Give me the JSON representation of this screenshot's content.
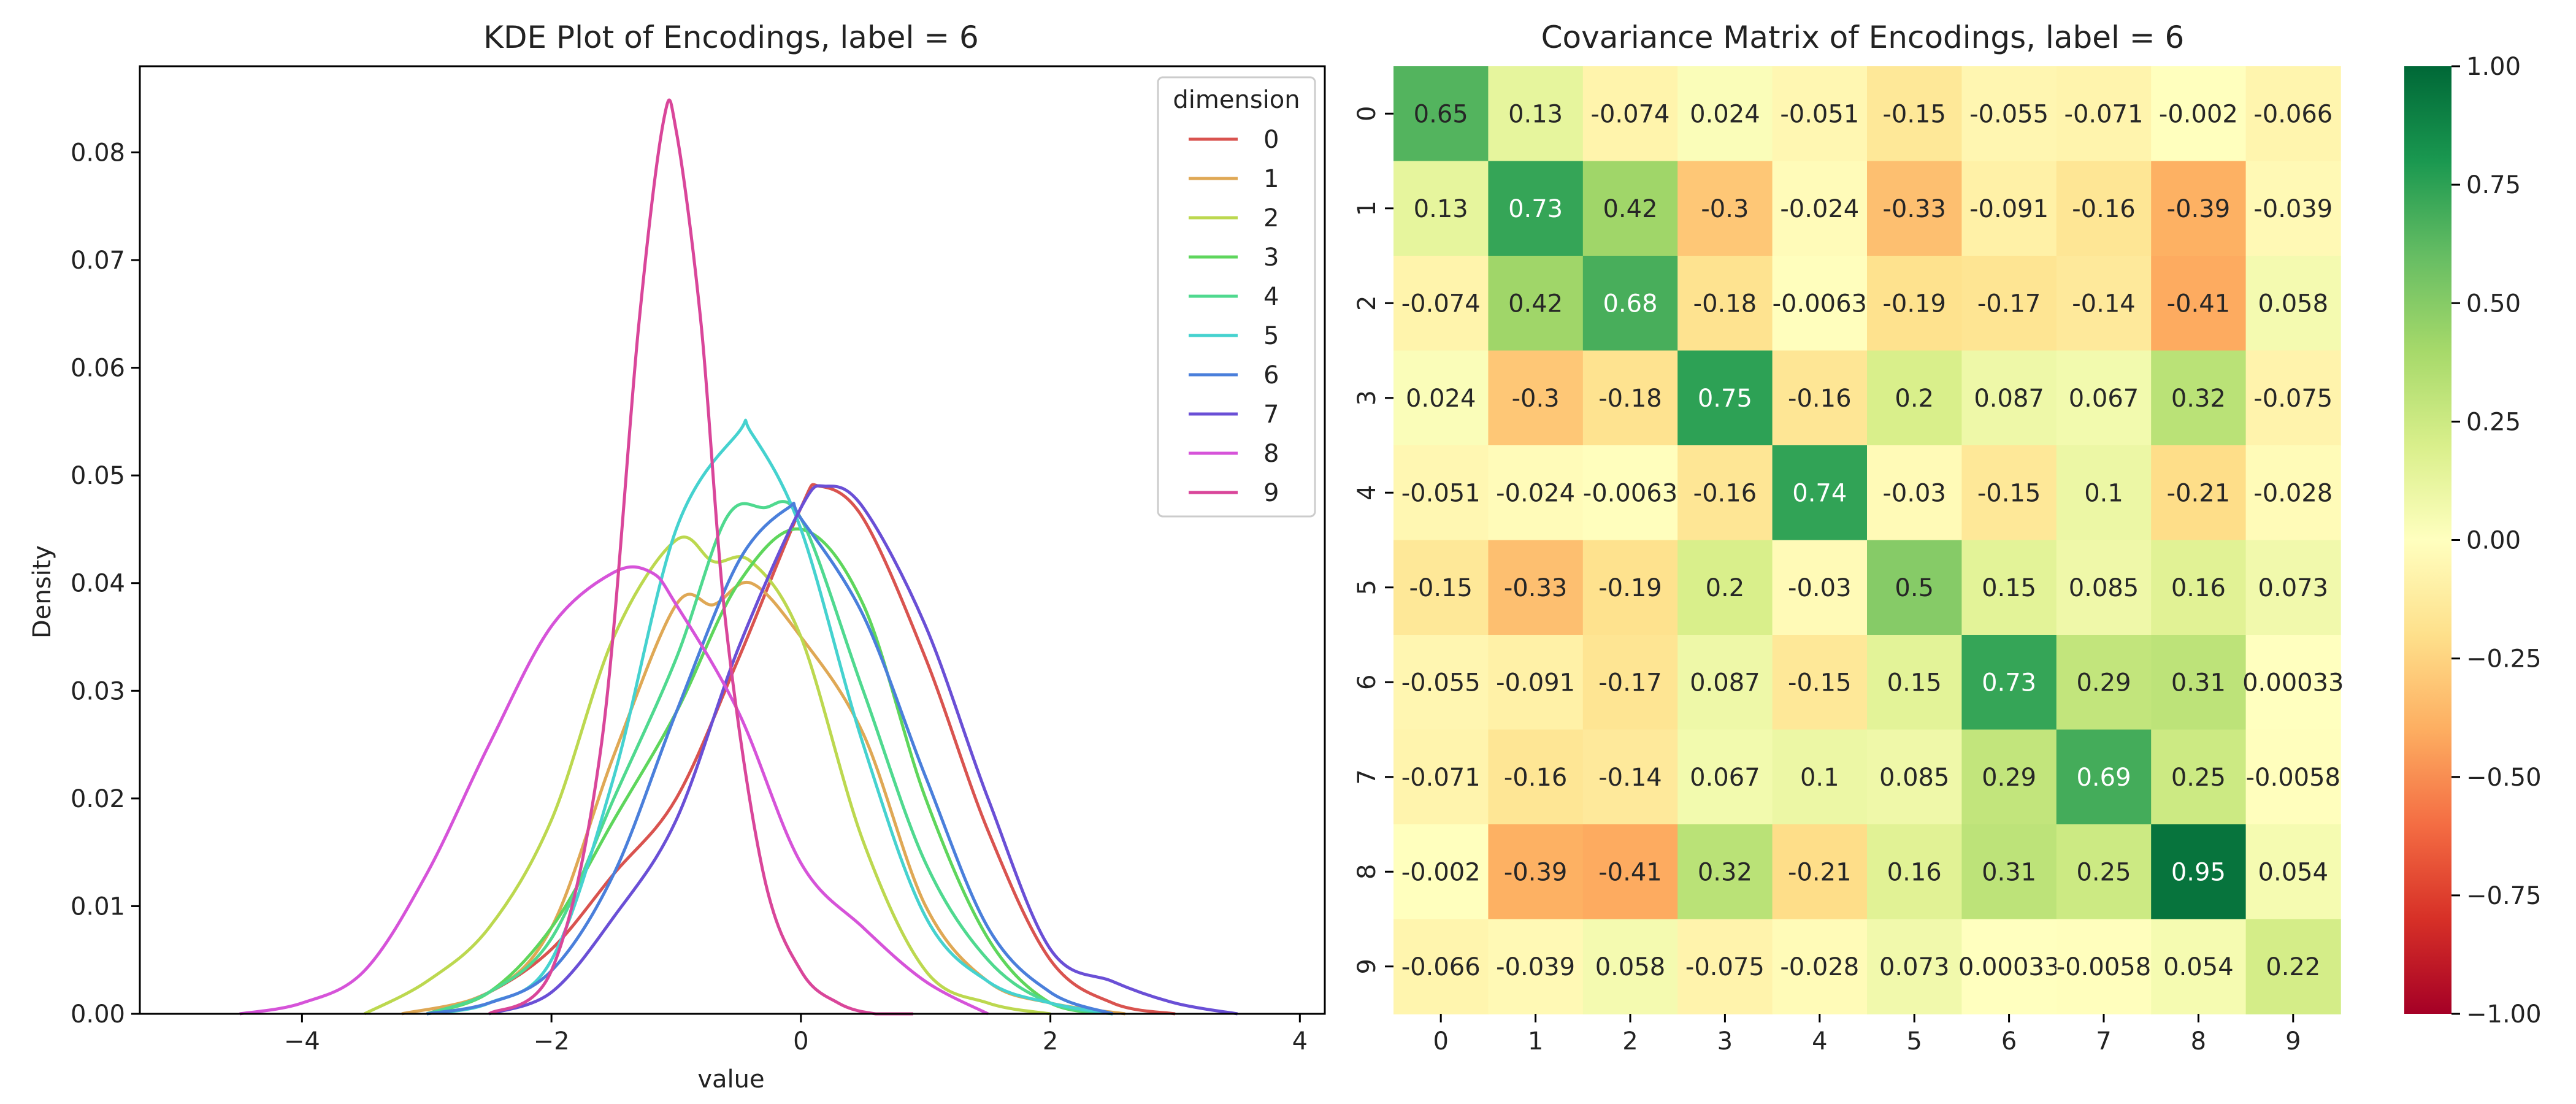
{
  "chart_data": [
    {
      "type": "line",
      "title": "KDE Plot of Encodings, label = 6",
      "xlabel": "value",
      "ylabel": "Density",
      "xlim": [
        -5.3,
        4.2
      ],
      "ylim": [
        0,
        0.088
      ],
      "x_ticks": [
        -4,
        -2,
        0,
        2,
        4
      ],
      "y_ticks": [
        0.0,
        0.01,
        0.02,
        0.03,
        0.04,
        0.05,
        0.06,
        0.07,
        0.08
      ],
      "grid": false,
      "legend": {
        "title": "dimension",
        "placement": "top-right"
      },
      "series": [
        {
          "name": "0",
          "color": "#d9534f",
          "x": [
            -3.0,
            -2.5,
            -2.0,
            -1.5,
            -1.0,
            -0.5,
            0.0,
            0.15,
            0.5,
            1.0,
            1.5,
            2.0,
            2.5,
            3.0
          ],
          "y": [
            0.0,
            0.002,
            0.006,
            0.013,
            0.02,
            0.033,
            0.047,
            0.049,
            0.046,
            0.033,
            0.017,
            0.005,
            0.001,
            0.0
          ]
        },
        {
          "name": "1",
          "color": "#dfa855",
          "x": [
            -3.2,
            -2.5,
            -2.0,
            -1.5,
            -1.0,
            -0.7,
            -0.4,
            0.0,
            0.5,
            1.0,
            1.5,
            2.0,
            2.6
          ],
          "y": [
            0.0,
            0.002,
            0.008,
            0.024,
            0.038,
            0.038,
            0.04,
            0.035,
            0.026,
            0.01,
            0.003,
            0.001,
            0.0
          ]
        },
        {
          "name": "2",
          "color": "#bcd84f",
          "x": [
            -3.5,
            -3.0,
            -2.5,
            -2.0,
            -1.5,
            -1.0,
            -0.7,
            -0.4,
            0.0,
            0.5,
            1.0,
            1.5,
            2.0
          ],
          "y": [
            0.0,
            0.003,
            0.008,
            0.018,
            0.035,
            0.044,
            0.042,
            0.042,
            0.035,
            0.016,
            0.004,
            0.001,
            0.0
          ]
        },
        {
          "name": "3",
          "color": "#5ed65c",
          "x": [
            -3.0,
            -2.5,
            -2.0,
            -1.5,
            -1.0,
            -0.5,
            0.0,
            0.5,
            1.0,
            1.5,
            2.0,
            2.5
          ],
          "y": [
            0.0,
            0.002,
            0.008,
            0.018,
            0.028,
            0.04,
            0.045,
            0.038,
            0.02,
            0.007,
            0.001,
            0.0
          ]
        },
        {
          "name": "4",
          "color": "#4fd98f",
          "x": [
            -3.0,
            -2.5,
            -2.0,
            -1.5,
            -1.0,
            -0.6,
            -0.3,
            0.0,
            0.5,
            1.0,
            1.5,
            2.0,
            2.5
          ],
          "y": [
            0.0,
            0.002,
            0.007,
            0.02,
            0.033,
            0.046,
            0.047,
            0.046,
            0.03,
            0.014,
            0.005,
            0.001,
            0.0
          ]
        },
        {
          "name": "5",
          "color": "#45d2cf",
          "x": [
            -3.0,
            -2.5,
            -2.0,
            -1.5,
            -1.0,
            -0.5,
            -0.4,
            0.0,
            0.5,
            1.0,
            1.5,
            2.0,
            2.5
          ],
          "y": [
            0.0,
            0.001,
            0.005,
            0.022,
            0.045,
            0.054,
            0.054,
            0.045,
            0.025,
            0.009,
            0.003,
            0.001,
            0.0
          ]
        },
        {
          "name": "6",
          "color": "#4a7fdb",
          "x": [
            -3.0,
            -2.5,
            -2.0,
            -1.5,
            -1.0,
            -0.5,
            -0.1,
            0.0,
            0.5,
            1.0,
            1.5,
            2.0,
            2.5
          ],
          "y": [
            0.0,
            0.001,
            0.004,
            0.013,
            0.028,
            0.042,
            0.047,
            0.046,
            0.037,
            0.022,
            0.008,
            0.002,
            0.0
          ]
        },
        {
          "name": "7",
          "color": "#6a4fd6",
          "x": [
            -2.5,
            -2.0,
            -1.5,
            -1.0,
            -0.5,
            0.0,
            0.2,
            0.5,
            1.0,
            1.5,
            2.0,
            2.5,
            3.0,
            3.5
          ],
          "y": [
            0.0,
            0.002,
            0.009,
            0.018,
            0.034,
            0.047,
            0.049,
            0.047,
            0.036,
            0.02,
            0.006,
            0.003,
            0.001,
            0.0
          ]
        },
        {
          "name": "8",
          "color": "#d653d9",
          "x": [
            -4.5,
            -4.0,
            -3.5,
            -3.0,
            -2.5,
            -2.0,
            -1.5,
            -1.2,
            -1.0,
            -0.5,
            0.0,
            0.5,
            1.0,
            1.5
          ],
          "y": [
            0.0,
            0.001,
            0.004,
            0.013,
            0.025,
            0.036,
            0.041,
            0.041,
            0.038,
            0.028,
            0.014,
            0.008,
            0.003,
            0.0
          ]
        },
        {
          "name": "9",
          "color": "#d9469a",
          "x": [
            -2.5,
            -2.0,
            -1.6,
            -1.3,
            -1.1,
            -1.0,
            -0.8,
            -0.6,
            -0.3,
            0.0,
            0.3,
            0.6,
            0.9
          ],
          "y": [
            0.0,
            0.004,
            0.025,
            0.064,
            0.083,
            0.082,
            0.064,
            0.036,
            0.013,
            0.004,
            0.001,
            0.0,
            0.0
          ]
        }
      ]
    },
    {
      "type": "heatmap",
      "title": "Covariance Matrix of Encodings, label = 6",
      "xlabel": "",
      "ylabel": "",
      "x_categories": [
        "0",
        "1",
        "2",
        "3",
        "4",
        "5",
        "6",
        "7",
        "8",
        "9"
      ],
      "y_categories": [
        "0",
        "1",
        "2",
        "3",
        "4",
        "5",
        "6",
        "7",
        "8",
        "9"
      ],
      "values": [
        [
          0.65,
          0.13,
          -0.074,
          0.024,
          -0.051,
          -0.15,
          -0.055,
          -0.071,
          -0.002,
          -0.066
        ],
        [
          0.13,
          0.73,
          0.42,
          -0.3,
          -0.024,
          -0.33,
          -0.091,
          -0.16,
          -0.39,
          -0.039
        ],
        [
          -0.074,
          0.42,
          0.68,
          -0.18,
          -0.0063,
          -0.19,
          -0.17,
          -0.14,
          -0.41,
          0.058
        ],
        [
          0.024,
          -0.3,
          -0.18,
          0.75,
          -0.16,
          0.2,
          0.087,
          0.067,
          0.32,
          -0.075
        ],
        [
          -0.051,
          -0.024,
          -0.0063,
          -0.16,
          0.74,
          -0.03,
          -0.15,
          0.1,
          -0.21,
          -0.028
        ],
        [
          -0.15,
          -0.33,
          -0.19,
          0.2,
          -0.03,
          0.5,
          0.15,
          0.085,
          0.16,
          0.073
        ],
        [
          -0.055,
          -0.091,
          -0.17,
          0.087,
          -0.15,
          0.15,
          0.73,
          0.29,
          0.31,
          0.00033
        ],
        [
          -0.071,
          -0.16,
          -0.14,
          0.067,
          0.1,
          0.085,
          0.29,
          0.69,
          0.25,
          -0.0058
        ],
        [
          -0.002,
          -0.39,
          -0.41,
          0.32,
          -0.21,
          0.16,
          0.31,
          0.25,
          0.95,
          0.054
        ],
        [
          -0.066,
          -0.039,
          0.058,
          -0.075,
          -0.028,
          0.073,
          0.00033,
          -0.0058,
          0.054,
          0.22
        ]
      ],
      "colormap": "RdYlGn",
      "vmin": -1.0,
      "vmax": 1.0,
      "colorbar_ticks": [
        "1.00",
        "0.75",
        "0.50",
        "0.25",
        "0.00",
        "−0.25",
        "−0.50",
        "−0.75",
        "−1.00"
      ]
    }
  ]
}
